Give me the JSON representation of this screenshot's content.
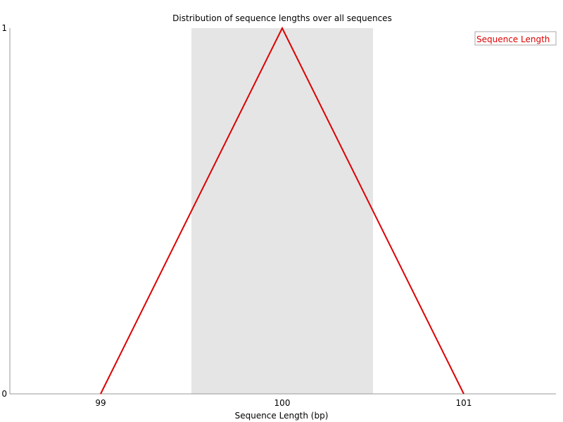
{
  "chart_data": {
    "type": "line",
    "title": "Distribution of sequence lengths over all sequences",
    "xlabel": "Sequence Length (bp)",
    "ylabel": "",
    "categories": [
      "99",
      "100",
      "101"
    ],
    "series": [
      {
        "name": "Sequence Length",
        "values": [
          0,
          1,
          0
        ]
      }
    ],
    "yticks": [
      "0",
      "1"
    ],
    "ylim": [
      0,
      1
    ],
    "highlighted_category": "100",
    "legend_position": "top-right",
    "grid": false,
    "colors": {
      "line": "#dd0000",
      "band": "#e5e5e5",
      "axis": "#999999",
      "legend_border": "#aaaaaa"
    }
  }
}
